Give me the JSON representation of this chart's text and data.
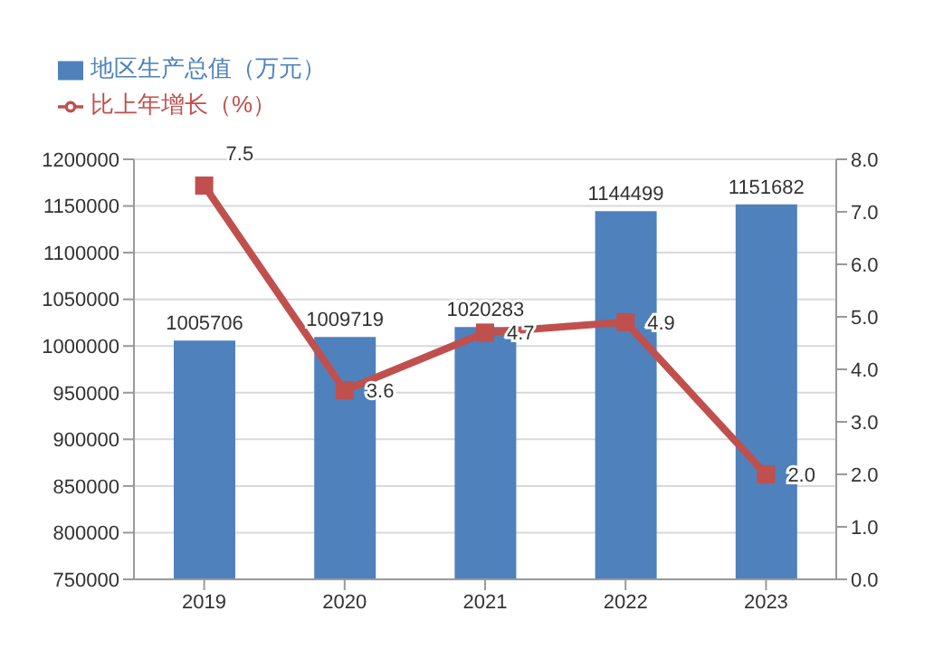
{
  "chart_data": {
    "type": "bar",
    "categories": [
      "2019",
      "2020",
      "2021",
      "2022",
      "2023"
    ],
    "series": [
      {
        "name": "地区生产总值（万元）",
        "color": "#4f81bd",
        "values": [
          1005706,
          1009719,
          1020283,
          1144499,
          1151682
        ],
        "value_labels": [
          "1005706",
          "1009719",
          "1020283",
          "1144499",
          "1151682"
        ]
      },
      {
        "name": "比上年增长（%）",
        "type": "line",
        "axis": "y2",
        "color": "#c0504d",
        "values": [
          7.5,
          3.6,
          4.7,
          4.9,
          2.0
        ],
        "value_labels": [
          "7.5",
          "3.6",
          "4.7",
          "4.9",
          "2.0"
        ],
        "marker": "square"
      }
    ],
    "ylim": [
      750000,
      1200000
    ],
    "yticks": [
      750000,
      800000,
      850000,
      900000,
      950000,
      1000000,
      1050000,
      1100000,
      1150000,
      1200000
    ],
    "y2lim": [
      0,
      8
    ],
    "y2ticks": [
      {
        "value": 0,
        "label": "0.0"
      },
      {
        "value": 1,
        "label": "1.0"
      },
      {
        "value": 2,
        "label": "2.0"
      },
      {
        "value": 3,
        "label": "3.0"
      },
      {
        "value": 4,
        "label": "4.0"
      },
      {
        "value": 5,
        "label": "5.0"
      },
      {
        "value": 6,
        "label": "6.0"
      },
      {
        "value": 7,
        "label": "7.0"
      },
      {
        "value": 8,
        "label": "8.0"
      }
    ],
    "grid": "y",
    "legend": "top left"
  }
}
